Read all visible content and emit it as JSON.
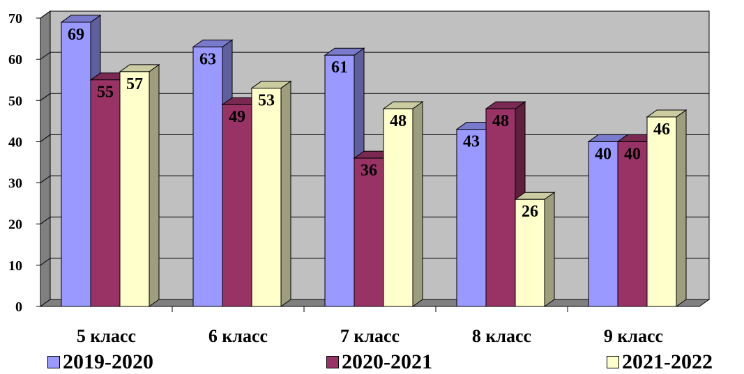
{
  "chart_data": {
    "type": "bar",
    "categories": [
      "5 класс",
      "6 класс",
      "7 класс",
      "8 класс",
      "9 класс"
    ],
    "series": [
      {
        "name": "2019-2020",
        "values": [
          69,
          63,
          61,
          43,
          40
        ],
        "color": "#9999ff"
      },
      {
        "name": "2020-2021",
        "values": [
          55,
          49,
          36,
          48,
          40
        ],
        "color": "#993366"
      },
      {
        "name": "2021-2022",
        "values": [
          57,
          53,
          48,
          26,
          46
        ],
        "color": "#ffffcc"
      }
    ],
    "y_ticks": [
      "0",
      "10",
      "20",
      "30",
      "40",
      "50",
      "60",
      "70"
    ],
    "ylim": [
      0,
      70
    ],
    "grid": true,
    "legend_position": "bottom",
    "wall_color": "#c0c0c0",
    "floor_color": "#808080"
  }
}
